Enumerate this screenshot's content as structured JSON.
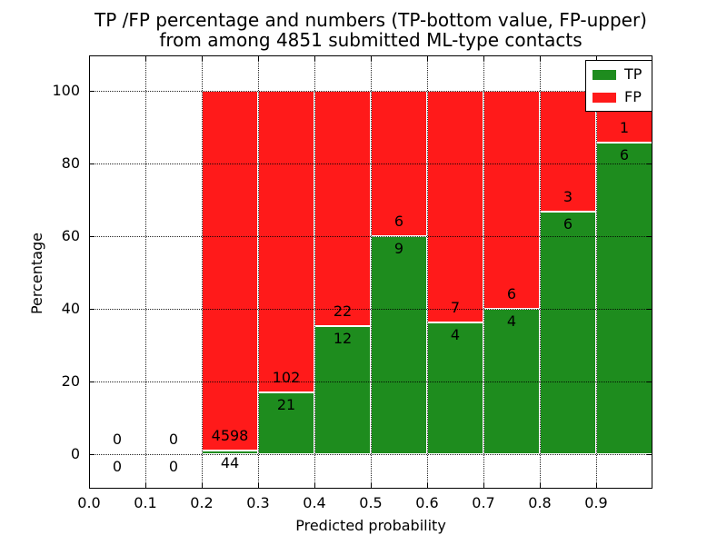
{
  "chart_data": {
    "type": "bar",
    "stacked": true,
    "normalized": "percentage",
    "title": "TP /FP percentage and numbers (TP-bottom value, FP-upper) from among 4851 submitted ML-type contacts",
    "title_line1": "TP /FP percentage and numbers (TP-bottom value, FP-upper)",
    "title_line2": "from among 4851 submitted ML-type contacts",
    "xlabel": "Predicted probability",
    "ylabel": "Percentage",
    "xlim": [
      0.0,
      1.0
    ],
    "ylim": [
      -9.5,
      109.75
    ],
    "xticks": [
      "0.0",
      "0.1",
      "0.2",
      "0.3",
      "0.4",
      "0.5",
      "0.6",
      "0.7",
      "0.8",
      "0.9"
    ],
    "yticks": [
      "0",
      "20",
      "40",
      "60",
      "80",
      "100"
    ],
    "grid": "dotted, drawn over bars",
    "bin_width": 0.1,
    "total_contacts": 4851,
    "colors": {
      "tp": "#1e8c1e",
      "fp": "#ff1a1a",
      "edge": "#ffffff"
    },
    "legend": {
      "position": "upper right",
      "entries": [
        {
          "key": "tp",
          "label": "TP"
        },
        {
          "key": "fp",
          "label": "FP"
        }
      ]
    },
    "bins": [
      {
        "x0": 0.0,
        "x1": 0.1,
        "tp": 0,
        "fp": 0
      },
      {
        "x0": 0.1,
        "x1": 0.2,
        "tp": 0,
        "fp": 0
      },
      {
        "x0": 0.2,
        "x1": 0.3,
        "tp": 44,
        "fp": 4598
      },
      {
        "x0": 0.3,
        "x1": 0.4,
        "tp": 21,
        "fp": 102
      },
      {
        "x0": 0.4,
        "x1": 0.5,
        "tp": 12,
        "fp": 22
      },
      {
        "x0": 0.5,
        "x1": 0.6,
        "tp": 9,
        "fp": 6
      },
      {
        "x0": 0.6,
        "x1": 0.7,
        "tp": 4,
        "fp": 7
      },
      {
        "x0": 0.7,
        "x1": 0.8,
        "tp": 4,
        "fp": 6
      },
      {
        "x0": 0.8,
        "x1": 0.9,
        "tp": 6,
        "fp": 3
      },
      {
        "x0": 0.9,
        "x1": 1.0,
        "tp": 6,
        "fp": 1
      }
    ]
  }
}
